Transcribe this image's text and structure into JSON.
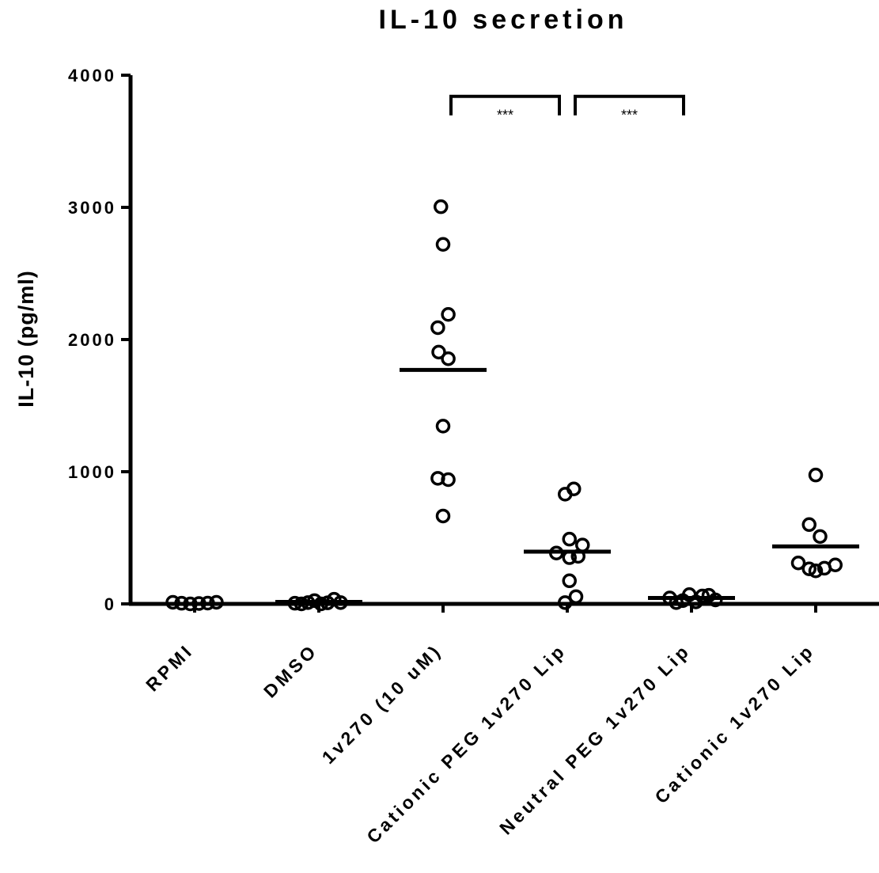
{
  "chart_data": {
    "type": "scatter",
    "title": "IL-10 secretion",
    "ylabel": "IL-10 (pg/ml)",
    "xlabel": "",
    "ylim": [
      0,
      4000
    ],
    "yticks": [
      0,
      1000,
      2000,
      3000,
      4000
    ],
    "yticks_labels": [
      "0",
      "1000",
      "2000",
      "3000",
      "4000"
    ],
    "grid": false,
    "categories": [
      "RPMI",
      "DMSO",
      "1v270 (10 uM)",
      "Cationic PEG 1v270 Lip",
      "Neutral PEG 1v270 Lip",
      "Cationic 1v270 Lip"
    ],
    "groups": [
      {
        "points": [
          {
            "o": -0.5,
            "v": 12
          },
          {
            "o": -0.3,
            "v": 5
          },
          {
            "o": -0.1,
            "v": 0
          },
          {
            "o": 0.1,
            "v": 3
          },
          {
            "o": 0.3,
            "v": 6
          },
          {
            "o": 0.5,
            "v": 12
          }
        ],
        "mean": null
      },
      {
        "points": [
          {
            "o": -0.55,
            "v": 5
          },
          {
            "o": -0.4,
            "v": 0
          },
          {
            "o": -0.25,
            "v": 10
          },
          {
            "o": -0.1,
            "v": 25
          },
          {
            "o": 0.05,
            "v": 0
          },
          {
            "o": 0.2,
            "v": 8
          },
          {
            "o": 0.35,
            "v": 35
          },
          {
            "o": 0.5,
            "v": 10
          }
        ],
        "mean": 15
      },
      {
        "points": [
          {
            "o": -0.05,
            "v": 3005
          },
          {
            "o": 0.0,
            "v": 2720
          },
          {
            "o": 0.12,
            "v": 2190
          },
          {
            "o": -0.12,
            "v": 2090
          },
          {
            "o": -0.1,
            "v": 1905
          },
          {
            "o": 0.12,
            "v": 1855
          },
          {
            "o": 0.0,
            "v": 1345
          },
          {
            "o": -0.12,
            "v": 950
          },
          {
            "o": 0.12,
            "v": 940
          },
          {
            "o": 0.0,
            "v": 665
          }
        ],
        "mean": 1770
      },
      {
        "points": [
          {
            "o": -0.05,
            "v": 830
          },
          {
            "o": 0.15,
            "v": 870
          },
          {
            "o": 0.05,
            "v": 490
          },
          {
            "o": 0.35,
            "v": 445
          },
          {
            "o": -0.25,
            "v": 385
          },
          {
            "o": 0.05,
            "v": 350
          },
          {
            "o": 0.25,
            "v": 360
          },
          {
            "o": 0.05,
            "v": 175
          },
          {
            "o": 0.2,
            "v": 55
          },
          {
            "o": -0.05,
            "v": 10
          }
        ],
        "mean": 395
      },
      {
        "points": [
          {
            "o": -0.5,
            "v": 45
          },
          {
            "o": -0.35,
            "v": 10
          },
          {
            "o": -0.2,
            "v": 25
          },
          {
            "o": -0.05,
            "v": 70
          },
          {
            "o": 0.1,
            "v": 15
          },
          {
            "o": 0.25,
            "v": 60
          },
          {
            "o": 0.4,
            "v": 65
          },
          {
            "o": 0.55,
            "v": 30
          }
        ],
        "mean": 45
      },
      {
        "points": [
          {
            "o": 0.0,
            "v": 975
          },
          {
            "o": -0.15,
            "v": 600
          },
          {
            "o": 0.1,
            "v": 510
          },
          {
            "o": -0.4,
            "v": 310
          },
          {
            "o": -0.15,
            "v": 265
          },
          {
            "o": 0.0,
            "v": 250
          },
          {
            "o": 0.2,
            "v": 270
          },
          {
            "o": 0.45,
            "v": 295
          }
        ],
        "mean": 435
      }
    ],
    "significance": [
      {
        "from": 2,
        "to": 3,
        "y": 3840,
        "label": "***"
      },
      {
        "from": 3,
        "to": 4,
        "y": 3840,
        "label": "***"
      }
    ]
  }
}
